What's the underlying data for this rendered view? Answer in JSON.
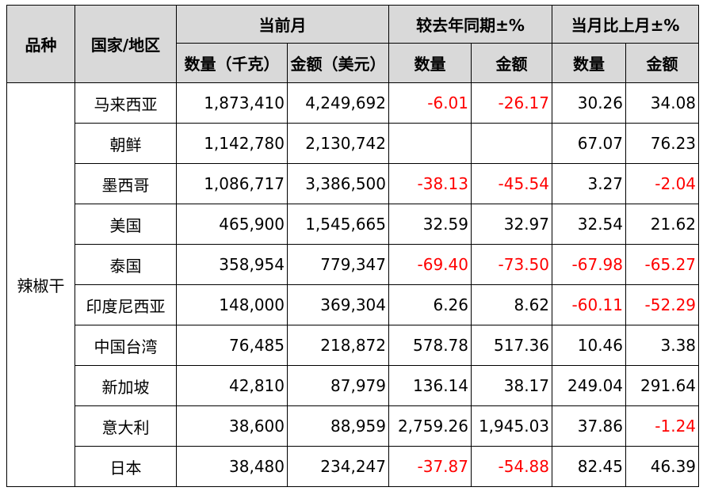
{
  "headers": {
    "variety": "品种",
    "country": "国家/地区",
    "current_month": "当前月",
    "yoy": "较去年同期±%",
    "mom": "当月比上月±%",
    "quantity_kg": "数量（千克）",
    "amount_usd": "金额（美元）",
    "quantity": "数量",
    "amount": "金额"
  },
  "variety": "辣椒干",
  "rows": [
    {
      "country": "马来西亚",
      "qty": "1,873,410",
      "amt": "4,249,692",
      "yoy_qty": "-6.01",
      "yoy_amt": "-26.17",
      "mom_qty": "30.26",
      "mom_amt": "34.08"
    },
    {
      "country": "朝鲜",
      "qty": "1,142,780",
      "amt": "2,130,742",
      "yoy_qty": "",
      "yoy_amt": "",
      "mom_qty": "67.07",
      "mom_amt": "76.23"
    },
    {
      "country": "墨西哥",
      "qty": "1,086,717",
      "amt": "3,386,500",
      "yoy_qty": "-38.13",
      "yoy_amt": "-45.54",
      "mom_qty": "3.27",
      "mom_amt": "-2.04"
    },
    {
      "country": "美国",
      "qty": "465,900",
      "amt": "1,545,665",
      "yoy_qty": "32.59",
      "yoy_amt": "32.97",
      "mom_qty": "32.54",
      "mom_amt": "21.62"
    },
    {
      "country": "泰国",
      "qty": "358,954",
      "amt": "779,347",
      "yoy_qty": "-69.40",
      "yoy_amt": "-73.50",
      "mom_qty": "-67.98",
      "mom_amt": "-65.27"
    },
    {
      "country": "印度尼西亚",
      "qty": "148,000",
      "amt": "369,304",
      "yoy_qty": "6.26",
      "yoy_amt": "8.62",
      "mom_qty": "-60.11",
      "mom_amt": "-52.29"
    },
    {
      "country": "中国台湾",
      "qty": "76,485",
      "amt": "218,872",
      "yoy_qty": "578.78",
      "yoy_amt": "517.36",
      "mom_qty": "10.46",
      "mom_amt": "3.38"
    },
    {
      "country": "新加坡",
      "qty": "42,810",
      "amt": "87,979",
      "yoy_qty": "136.14",
      "yoy_amt": "38.17",
      "mom_qty": "249.04",
      "mom_amt": "291.64"
    },
    {
      "country": "意大利",
      "qty": "38,600",
      "amt": "88,959",
      "yoy_qty": "2,759.26",
      "yoy_amt": "1,945.03",
      "mom_qty": "37.86",
      "mom_amt": "-1.24"
    },
    {
      "country": "日本",
      "qty": "38,480",
      "amt": "234,247",
      "yoy_qty": "-37.87",
      "yoy_amt": "-54.88",
      "mom_qty": "82.45",
      "mom_amt": "46.39"
    }
  ],
  "colors": {
    "header_bg": "#d9d9d9",
    "negative": "#ff0000"
  }
}
